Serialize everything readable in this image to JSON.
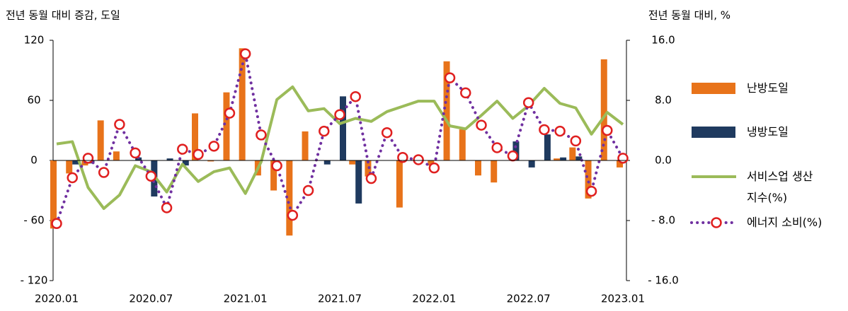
{
  "chart_data": {
    "type": "bar",
    "y_label": "전년 동월 대비 증감, 도일",
    "y2_label": "전년 동월 대비, %",
    "categories": [
      "2020.01",
      null,
      null,
      null,
      null,
      null,
      "2020.07",
      null,
      null,
      null,
      null,
      null,
      "2021.01",
      null,
      null,
      null,
      null,
      null,
      "2021.07",
      null,
      null,
      null,
      null,
      null,
      "2022.01",
      null,
      null,
      null,
      null,
      null,
      "2022.07",
      null,
      null,
      null,
      null,
      null,
      "2023.01"
    ],
    "ylim": [
      -120,
      120
    ],
    "yticks": [
      {
        "value": -120,
        "label": "- 120"
      },
      {
        "value": -60,
        "label": "- 60"
      },
      0,
      60,
      120
    ],
    "y2lim": [
      -16,
      16
    ],
    "y2ticks": [
      {
        "value": -16,
        "label": "- 16.0"
      },
      {
        "value": -8,
        "label": "- 8.0"
      },
      {
        "value": 0,
        "label": "0.0"
      },
      {
        "value": 8,
        "label": "8.0"
      },
      {
        "value": 16,
        "label": "16.0"
      }
    ],
    "series": [
      {
        "name": "난방도일",
        "type": "bar",
        "color": "#e8731a",
        "values": [
          -68,
          -13,
          -5,
          40,
          9,
          0,
          0,
          0,
          0,
          47,
          -1,
          68,
          112,
          -15,
          -30,
          -75,
          29,
          0,
          0,
          -4,
          -16,
          0,
          -47,
          0,
          -5,
          99,
          31,
          -15,
          -22,
          0,
          0,
          0,
          2,
          13,
          -38,
          101,
          -7
        ]
      },
      {
        "name": "냉방도일",
        "type": "bar",
        "color": "#1f3a5f",
        "values": [
          0,
          -4,
          -3,
          0,
          0,
          3,
          -36,
          2,
          -5,
          0,
          0,
          0,
          0,
          0,
          0,
          0,
          0,
          -4,
          64,
          -43,
          0,
          0,
          0,
          0,
          0,
          0,
          0,
          0,
          0,
          19,
          -7,
          26,
          3,
          4,
          0,
          0,
          0
        ]
      },
      {
        "name": "서비스업 생산지수(%)",
        "type": "line",
        "axis": "y2",
        "color": "#9bbb59",
        "values": [
          2.2,
          2.5,
          -3.6,
          -6.4,
          -4.6,
          -0.7,
          -1.5,
          -4.2,
          -0.5,
          -2.8,
          -1.5,
          -1.0,
          -4.4,
          -0.2,
          8.1,
          9.8,
          6.6,
          6.9,
          4.9,
          5.6,
          5.2,
          6.5,
          7.2,
          7.9,
          7.9,
          4.6,
          4.2,
          6.0,
          7.9,
          5.6,
          7.3,
          9.6,
          7.6,
          7.0,
          3.5,
          6.4,
          4.8
        ]
      },
      {
        "name": "에너지 소비(%)",
        "type": "line",
        "axis": "y2",
        "color": "#7030a0",
        "dash": "dotted",
        "marker": "circle",
        "marker_color": "#e02020",
        "values": [
          -8.4,
          -2.3,
          0.3,
          -1.6,
          4.8,
          1.0,
          -2.1,
          -6.3,
          1.5,
          0.8,
          1.9,
          6.3,
          14.2,
          3.4,
          -0.7,
          -7.3,
          -4.0,
          3.9,
          6.1,
          8.5,
          -2.4,
          3.7,
          0.4,
          0.1,
          -1.0,
          11.0,
          9.0,
          4.7,
          1.7,
          0.6,
          7.7,
          4.1,
          3.9,
          2.6,
          -4.1,
          4.0,
          0.3
        ]
      }
    ]
  }
}
